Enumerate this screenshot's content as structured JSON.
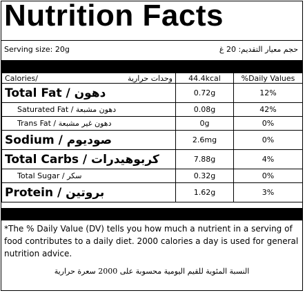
{
  "title": "Nutrition Facts",
  "serving": {
    "english": "Serving size: 20g",
    "arabic": "حجم معيار التقديم: 20 غ"
  },
  "table": {
    "header": {
      "name_en": "Calories/",
      "name_ar": "وحدات حرارية",
      "amount": "44.4kcal",
      "daily": "%Daily Values"
    },
    "rows": [
      {
        "name_en": "Total Fat / ",
        "name_ar": "دهون",
        "amount": "0.72g",
        "daily": "12%",
        "level": "major"
      },
      {
        "name_en": "Saturated Fat / ",
        "name_ar": "دهون مشبعة",
        "amount": "0.08g",
        "daily": "42%",
        "level": "minor"
      },
      {
        "name_en": "Trans Fat / ",
        "name_ar": "دهون غير مشبعة",
        "amount": "0g",
        "daily": "0%",
        "level": "minor"
      },
      {
        "name_en": "Sodium / ",
        "name_ar": "صوديوم",
        "amount": "2.6mg",
        "daily": "0%",
        "level": "major"
      },
      {
        "name_en": "Total Carbs / ",
        "name_ar": "كربوهيدرات",
        "amount": "7.88g",
        "daily": "4%",
        "level": "major"
      },
      {
        "name_en": "Total Sugar / ",
        "name_ar": "سكر",
        "amount": "0.32g",
        "daily": "0%",
        "level": "minor"
      },
      {
        "name_en": "Protein / ",
        "name_ar": "بروتين",
        "amount": "1.62g",
        "daily": "3%",
        "level": "major"
      }
    ]
  },
  "footnote": {
    "english": "*The % Daily Value (DV) tells you how much a nutrient in a serving of food contributes to a daily diet. 2000 calories a day is used for general nutrition advice.",
    "arabic": "النسبة المئوية للقيم اليومية محسوبة على 2000 سعرة حرارية"
  }
}
